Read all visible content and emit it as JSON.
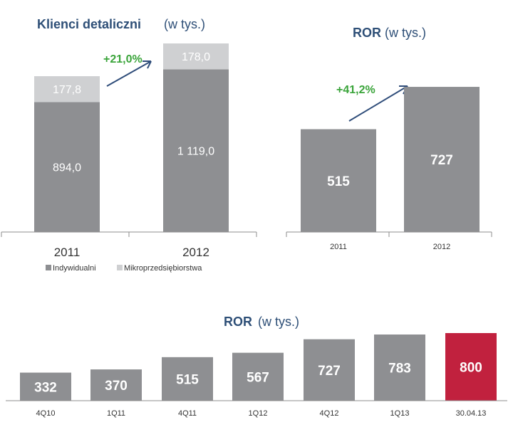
{
  "chart_data": [
    {
      "type": "bar",
      "stacked": true,
      "title": "Klienci detaliczni",
      "subtitle": "(w tys.)",
      "categories": [
        "2011",
        "2012"
      ],
      "series": [
        {
          "name": "Indywidualni",
          "values": [
            894.0,
            1119.0
          ],
          "labels": [
            "894,0",
            "1 119,0"
          ],
          "color": "#8e8f92"
        },
        {
          "name": "Mikroprzedsiębiorstwa",
          "values": [
            177.8,
            178.0
          ],
          "labels": [
            "177,8",
            "178,0"
          ],
          "color": "#cfd0d2"
        }
      ],
      "annotation": "+21,0%",
      "ylim": [
        0,
        1400
      ],
      "legend": "bottom"
    },
    {
      "type": "bar",
      "title": "ROR",
      "subtitle": "(w tys.)",
      "categories": [
        "2011",
        "2012"
      ],
      "values": [
        515,
        727
      ],
      "labels": [
        "515",
        "727"
      ],
      "color": "#8e8f92",
      "annotation": "+41,2%",
      "ylim": [
        0,
        850
      ]
    },
    {
      "type": "bar",
      "title": "ROR",
      "subtitle": "(w tys.)",
      "categories": [
        "4Q10",
        "1Q11",
        "4Q11",
        "1Q12",
        "4Q12",
        "1Q13",
        "30.04.13"
      ],
      "values": [
        332,
        370,
        515,
        567,
        727,
        783,
        800
      ],
      "labels": [
        "332",
        "370",
        "515",
        "567",
        "727",
        "783",
        "800"
      ],
      "colors": [
        "#8e8f92",
        "#8e8f92",
        "#8e8f92",
        "#8e8f92",
        "#8e8f92",
        "#8e8f92",
        "#c1213e"
      ],
      "ylim": [
        0,
        860
      ]
    }
  ]
}
